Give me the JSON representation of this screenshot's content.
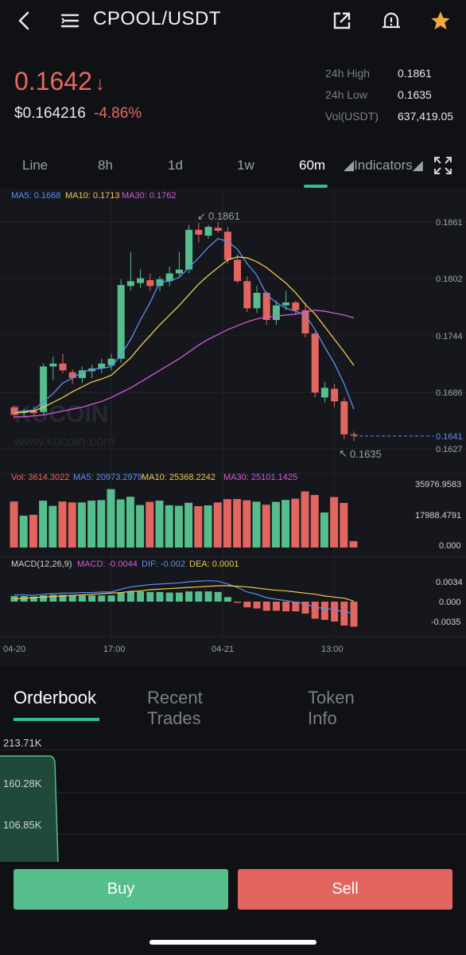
{
  "header": {
    "title": "CPOOL/USDT",
    "icons": [
      "back-icon",
      "menu-icon",
      "share-icon",
      "alert-bell-icon",
      "star-icon"
    ]
  },
  "ticker": {
    "price": "0.1642",
    "arrow": "↓",
    "usd_price": "$0.164216",
    "change": "-4.86%",
    "stats": [
      {
        "label": "24h High",
        "value": "0.1861"
      },
      {
        "label": "24h Low",
        "value": "0.1635"
      },
      {
        "label": "Vol(USDT)",
        "value": "637,419.05"
      }
    ]
  },
  "timeframes": {
    "items": [
      "Line",
      "8h",
      "1d",
      "1w",
      "60m"
    ],
    "active": "60m",
    "indicators_label": "◢Indicators◢"
  },
  "main_chart": {
    "ma_legend": [
      {
        "text": "MA5: 0.1668",
        "color": "#5b8ff0"
      },
      {
        "text": "MA10: 0.1713",
        "color": "#f2c94c"
      },
      {
        "text": "MA30: 0.1762",
        "color": "#d25ad9"
      }
    ],
    "y_ticks": [
      "0.1861",
      "0.1802",
      "0.1744",
      "0.1686",
      "0.1627"
    ],
    "current_price_tag": "0.1641",
    "high_marker": "0.1861",
    "low_marker": "0.1635",
    "watermark": "KUCOIN",
    "watermark_url": "www.kucoin.com"
  },
  "volume_chart": {
    "legend": [
      {
        "text": "Vol: 3614.3022",
        "color": "#e8675f"
      },
      {
        "text": "MA5: 20973.2979",
        "color": "#5b8ff0"
      },
      {
        "text": "MA10: 25368.2242",
        "color": "#f2c94c"
      },
      {
        "text": "MA30: 25101.1425",
        "color": "#d25ad9"
      }
    ],
    "y_ticks": [
      "35976.9583",
      "17988.4791",
      "0.000"
    ]
  },
  "macd_chart": {
    "legend": [
      {
        "text": "MACD(12,26,9)",
        "color": "#cfd1d6"
      },
      {
        "text": "MACD: -0.0044",
        "color": "#d25ad9"
      },
      {
        "text": "DIF: -0.002",
        "color": "#5b8ff0"
      },
      {
        "text": "DEA: 0.0001",
        "color": "#f2c94c"
      }
    ],
    "y_ticks": [
      "0.0034",
      "0.000",
      "-0.0035"
    ]
  },
  "x_axis": [
    "04-20",
    "17:00",
    "04-21",
    "13:00"
  ],
  "chart_data": {
    "type": "candlestick",
    "y_range": [
      0.1627,
      0.1861
    ],
    "candles": [
      {
        "o": 0.167,
        "h": 0.1672,
        "l": 0.1658,
        "c": 0.1662
      },
      {
        "o": 0.1664,
        "h": 0.1668,
        "l": 0.166,
        "c": 0.1666
      },
      {
        "o": 0.1666,
        "h": 0.167,
        "l": 0.1662,
        "c": 0.1664
      },
      {
        "o": 0.1665,
        "h": 0.1715,
        "l": 0.1662,
        "c": 0.1712
      },
      {
        "o": 0.1712,
        "h": 0.1722,
        "l": 0.1698,
        "c": 0.1715
      },
      {
        "o": 0.1715,
        "h": 0.1725,
        "l": 0.1705,
        "c": 0.1708
      },
      {
        "o": 0.1706,
        "h": 0.1709,
        "l": 0.1694,
        "c": 0.17
      },
      {
        "o": 0.17,
        "h": 0.1712,
        "l": 0.1695,
        "c": 0.1708
      },
      {
        "o": 0.1707,
        "h": 0.1714,
        "l": 0.17,
        "c": 0.171
      },
      {
        "o": 0.171,
        "h": 0.172,
        "l": 0.1705,
        "c": 0.1715
      },
      {
        "o": 0.1713,
        "h": 0.1725,
        "l": 0.1708,
        "c": 0.172
      },
      {
        "o": 0.172,
        "h": 0.1802,
        "l": 0.1716,
        "c": 0.1796
      },
      {
        "o": 0.1795,
        "h": 0.183,
        "l": 0.179,
        "c": 0.18
      },
      {
        "o": 0.1798,
        "h": 0.1812,
        "l": 0.1793,
        "c": 0.1803
      },
      {
        "o": 0.1801,
        "h": 0.1808,
        "l": 0.179,
        "c": 0.1795
      },
      {
        "o": 0.1795,
        "h": 0.1805,
        "l": 0.179,
        "c": 0.1802
      },
      {
        "o": 0.18,
        "h": 0.1815,
        "l": 0.1795,
        "c": 0.1808
      },
      {
        "o": 0.1808,
        "h": 0.183,
        "l": 0.1805,
        "c": 0.1812
      },
      {
        "o": 0.1812,
        "h": 0.1858,
        "l": 0.1808,
        "c": 0.1853
      },
      {
        "o": 0.1853,
        "h": 0.186,
        "l": 0.184,
        "c": 0.1848
      },
      {
        "o": 0.1847,
        "h": 0.1858,
        "l": 0.1844,
        "c": 0.1856
      },
      {
        "o": 0.1855,
        "h": 0.1861,
        "l": 0.185,
        "c": 0.1852
      },
      {
        "o": 0.1851,
        "h": 0.1856,
        "l": 0.1818,
        "c": 0.1822
      },
      {
        "o": 0.1822,
        "h": 0.1828,
        "l": 0.1798,
        "c": 0.18
      },
      {
        "o": 0.18,
        "h": 0.1805,
        "l": 0.1768,
        "c": 0.1772
      },
      {
        "o": 0.1772,
        "h": 0.1795,
        "l": 0.1767,
        "c": 0.1788
      },
      {
        "o": 0.1788,
        "h": 0.179,
        "l": 0.1755,
        "c": 0.176
      },
      {
        "o": 0.176,
        "h": 0.178,
        "l": 0.1755,
        "c": 0.1775
      },
      {
        "o": 0.1775,
        "h": 0.179,
        "l": 0.177,
        "c": 0.1778
      },
      {
        "o": 0.1778,
        "h": 0.178,
        "l": 0.1765,
        "c": 0.177
      },
      {
        "o": 0.177,
        "h": 0.1778,
        "l": 0.1742,
        "c": 0.1746
      },
      {
        "o": 0.1746,
        "h": 0.1748,
        "l": 0.168,
        "c": 0.1685
      },
      {
        "o": 0.168,
        "h": 0.1696,
        "l": 0.1675,
        "c": 0.169
      },
      {
        "o": 0.1689,
        "h": 0.1694,
        "l": 0.167,
        "c": 0.1676
      },
      {
        "o": 0.1676,
        "h": 0.168,
        "l": 0.1637,
        "c": 0.1642
      },
      {
        "o": 0.1642,
        "h": 0.1645,
        "l": 0.1635,
        "c": 0.1641
      }
    ],
    "ma5": [
      0.1665,
      0.1666,
      0.1667,
      0.1676,
      0.1684,
      0.1695,
      0.17,
      0.1706,
      0.1709,
      0.171,
      0.1712,
      0.1724,
      0.174,
      0.176,
      0.1778,
      0.1799,
      0.18,
      0.1804,
      0.1814,
      0.1824,
      0.1835,
      0.1844,
      0.1841,
      0.1833,
      0.1818,
      0.1806,
      0.1786,
      0.1778,
      0.1772,
      0.1769,
      0.1765,
      0.175,
      0.1732,
      0.1715,
      0.1694,
      0.1668
    ],
    "ma10": [
      0.1664,
      0.1665,
      0.1666,
      0.167,
      0.1675,
      0.168,
      0.1686,
      0.1691,
      0.1696,
      0.1699,
      0.1703,
      0.1712,
      0.1721,
      0.1733,
      0.1744,
      0.1755,
      0.1765,
      0.1775,
      0.1786,
      0.1797,
      0.1806,
      0.1814,
      0.1822,
      0.1825,
      0.1824,
      0.182,
      0.1814,
      0.1806,
      0.1798,
      0.1788,
      0.1776,
      0.1766,
      0.1753,
      0.174,
      0.1727,
      0.1713
    ],
    "ma30": [
      0.166,
      0.166,
      0.1661,
      0.1662,
      0.1664,
      0.1666,
      0.1668,
      0.167,
      0.1673,
      0.1676,
      0.168,
      0.1685,
      0.169,
      0.1696,
      0.1702,
      0.1708,
      0.1714,
      0.172,
      0.1727,
      0.1734,
      0.174,
      0.1745,
      0.175,
      0.1754,
      0.1758,
      0.1761,
      0.1763,
      0.1764,
      0.1765,
      0.1766,
      0.1768,
      0.177,
      0.1769,
      0.1767,
      0.1765,
      0.1762
    ],
    "volume": [
      26000,
      18000,
      18500,
      26500,
      23500,
      26000,
      25500,
      25500,
      26500,
      26800,
      33000,
      27200,
      28700,
      24000,
      25800,
      26500,
      23900,
      23600,
      25300,
      23400,
      23800,
      25500,
      27300,
      27400,
      26700,
      25900,
      24200,
      25800,
      26900,
      27600,
      31700,
      29700,
      19800,
      28500,
      25200,
      3614
    ],
    "macd": [
      0.001,
      0.001,
      0.0009,
      0.0011,
      0.0012,
      0.0012,
      0.0011,
      0.0011,
      0.0011,
      0.0011,
      0.0011,
      0.0016,
      0.0018,
      0.0018,
      0.0017,
      0.0017,
      0.0016,
      0.0016,
      0.0018,
      0.0018,
      0.0018,
      0.0017,
      0.0008,
      -0.0002,
      -0.001,
      -0.0012,
      -0.0016,
      -0.0016,
      -0.0017,
      -0.0017,
      -0.0021,
      -0.003,
      -0.0032,
      -0.0035,
      -0.0042,
      -0.0044
    ],
    "dif": [
      0.0012,
      0.0012,
      0.0011,
      0.0013,
      0.0014,
      0.0015,
      0.0015,
      0.0016,
      0.0016,
      0.0017,
      0.0017,
      0.0022,
      0.0026,
      0.0028,
      0.003,
      0.0031,
      0.0032,
      0.0033,
      0.0035,
      0.0036,
      0.0037,
      0.0036,
      0.0031,
      0.0025,
      0.0017,
      0.0013,
      0.0007,
      0.0004,
      0.0002,
      -0.0001,
      -0.0004,
      -0.001,
      -0.0012,
      -0.0014,
      -0.0018,
      -0.002
    ],
    "dea": [
      0.0005,
      0.0006,
      0.0007,
      0.0008,
      0.0009,
      0.001,
      0.0011,
      0.0012,
      0.0013,
      0.0014,
      0.0015,
      0.0016,
      0.0018,
      0.0019,
      0.0021,
      0.0022,
      0.0023,
      0.0024,
      0.0025,
      0.0026,
      0.0027,
      0.0028,
      0.0028,
      0.0027,
      0.0026,
      0.0024,
      0.0022,
      0.002,
      0.0019,
      0.0017,
      0.0015,
      0.0013,
      0.001,
      0.0008,
      0.0006,
      0.0001
    ]
  },
  "bottom_tabs": {
    "items": [
      "Orderbook",
      "Recent Trades",
      "Token Info"
    ],
    "active": "Orderbook"
  },
  "orderbook": {
    "depth_labels": [
      "213.71K",
      "160.28K",
      "106.85K"
    ]
  },
  "actions": {
    "buy": "Buy",
    "sell": "Sell"
  },
  "colors": {
    "up": "#56bd8c",
    "down": "#e2655f",
    "accent": "#2fbf92"
  }
}
